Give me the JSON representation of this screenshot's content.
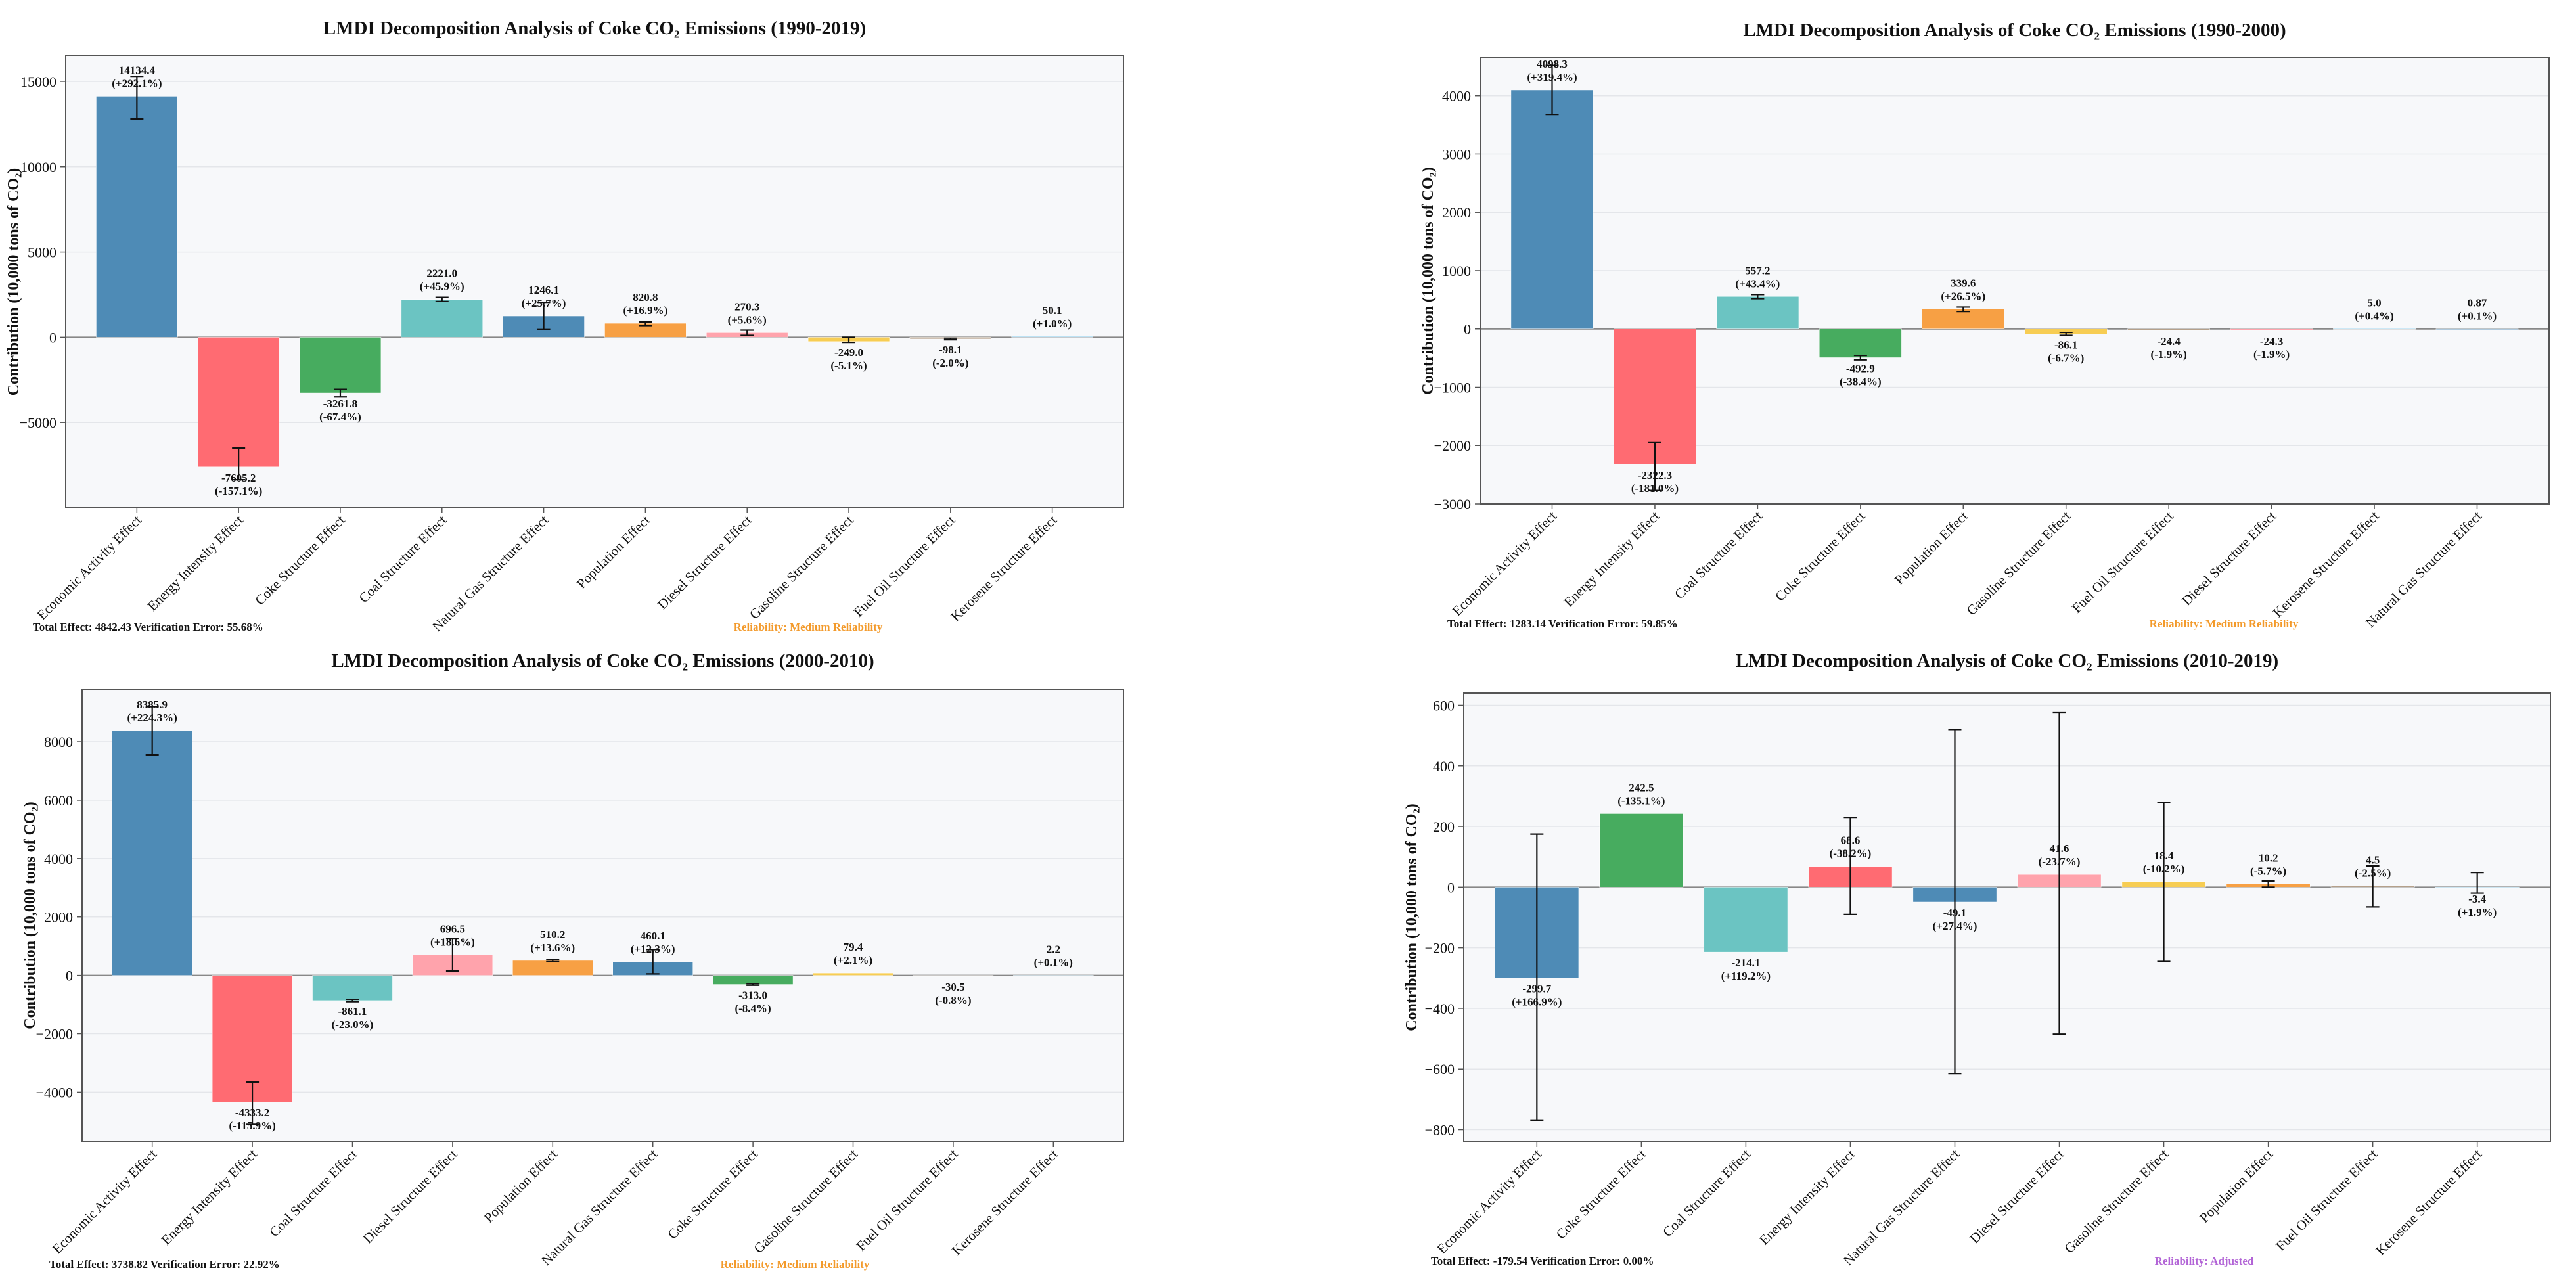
{
  "colors": {
    "plot_bg": "#f7f8fa",
    "grid": "#e4e6ea",
    "axis": "#555555",
    "zero": "#888888",
    "text": "#111111",
    "reliability_medium": "#f39a2b",
    "reliability_adjusted": "#b264d6"
  },
  "chart_data": [
    {
      "type": "bar",
      "title": "LMDI Decomposition Analysis of Coke CO₂ Emissions (1990-2019)",
      "ylabel": "Contribution (10,000 tons of CO₂)",
      "xlabel": "",
      "ylim": [
        -10000,
        16500
      ],
      "yticks": [
        -5000,
        0,
        5000,
        10000,
        15000
      ],
      "categories": [
        "Economic Activity Effect",
        "Energy Intensity Effect",
        "Coke Structure Effect",
        "Coal Structure Effect",
        "Natural Gas Structure Effect",
        "Population Effect",
        "Diesel Structure Effect",
        "Gasoline Structure Effect",
        "Fuel Oil Structure Effect",
        "Kerosene Structure Effect"
      ],
      "values": [
        14134.4,
        -7605.2,
        -3261.8,
        2221.0,
        1246.1,
        820.8,
        270.3,
        -249.0,
        -98.1,
        50.1
      ],
      "error_low": [
        12800,
        -8350,
        -3500,
        2100,
        450,
        690,
        110,
        -300,
        -145,
        35
      ],
      "error_high": [
        15300,
        -6500,
        -3050,
        2340,
        2050,
        900,
        420,
        0,
        -55,
        70
      ],
      "value_labels": [
        "14134.4",
        "-7605.2",
        "-3261.8",
        "2221.0",
        "1246.1",
        "820.8",
        "270.3",
        "-249.0",
        "-98.1",
        "50.1"
      ],
      "pct_labels": [
        "(+292.1%)",
        "(-157.1%)",
        "(-67.4%)",
        "(+45.9%)",
        "(+25.7%)",
        "(+16.9%)",
        "(+5.6%)",
        "(-5.1%)",
        "(-2.0%)",
        "(+1.0%)"
      ],
      "bar_colors": [
        "#4e8bb6",
        "#ff6b72",
        "#47ac5f",
        "#6bc4c2",
        "#4e8bb6",
        "#f7a044",
        "#ffa3ac",
        "#f7cd53",
        "#b5a08a",
        "#9ad4f0"
      ],
      "footer_left": "Total Effect: 4842.43   Verification Error: 55.68%",
      "footer_reliability": "Reliability: Medium Reliability",
      "reliability_color": "#f39a2b"
    },
    {
      "type": "bar",
      "title": "LMDI Decomposition Analysis of Coke CO₂ Emissions (1990-2000)",
      "ylabel": "Contribution (10,000 tons of CO₂)",
      "xlabel": "",
      "ylim": [
        -3000,
        4650
      ],
      "yticks": [
        -3000,
        -2000,
        -1000,
        0,
        1000,
        2000,
        3000,
        4000
      ],
      "categories": [
        "Economic Activity Effect",
        "Energy Intensity Effect",
        "Coal Structure Effect",
        "Coke Structure Effect",
        "Population Effect",
        "Gasoline Structure Effect",
        "Fuel Oil Structure Effect",
        "Diesel Structure Effect",
        "Kerosene Structure Effect",
        "Natural Gas Structure Effect"
      ],
      "values": [
        4098.3,
        -2322.3,
        557.2,
        -492.9,
        339.6,
        -86.1,
        -24.4,
        -24.3,
        5.0,
        0.87
      ],
      "error_low": [
        3680,
        -2770,
        520,
        -530,
        300,
        -110,
        -35,
        -35,
        3,
        0.5
      ],
      "error_high": [
        4520,
        -1950,
        590,
        -455,
        375,
        -60,
        -14,
        -14,
        7,
        1.2
      ],
      "value_labels": [
        "4098.3",
        "-2322.3",
        "557.2",
        "-492.9",
        "339.6",
        "-86.1",
        "-24.4",
        "-24.3",
        "5.0",
        "0.87"
      ],
      "pct_labels": [
        "(+319.4%)",
        "(-181.0%)",
        "(+43.4%)",
        "(-38.4%)",
        "(+26.5%)",
        "(-6.7%)",
        "(-1.9%)",
        "(-1.9%)",
        "(+0.4%)",
        "(+0.1%)"
      ],
      "bar_colors": [
        "#4e8bb6",
        "#ff6b72",
        "#6bc4c2",
        "#47ac5f",
        "#f7a044",
        "#f7cd53",
        "#b5a08a",
        "#ffa3ac",
        "#9ad4f0",
        "#4e8bb6"
      ],
      "footer_left": "Total Effect: 1283.14   Verification Error: 59.85%",
      "footer_reliability": "Reliability: Medium Reliability",
      "reliability_color": "#f39a2b"
    },
    {
      "type": "bar",
      "title": "LMDI Decomposition Analysis of Coke CO₂ Emissions (2000-2010)",
      "ylabel": "Contribution (10,000 tons of CO₂)",
      "xlabel": "",
      "ylim": [
        -5700,
        9800
      ],
      "yticks": [
        -4000,
        -2000,
        0,
        2000,
        4000,
        6000,
        8000
      ],
      "categories": [
        "Economic Activity Effect",
        "Energy Intensity Effect",
        "Coal Structure Effect",
        "Diesel Structure Effect",
        "Population Effect",
        "Natural Gas Structure Effect",
        "Coke Structure Effect",
        "Gasoline Structure Effect",
        "Fuel Oil Structure Effect",
        "Kerosene Structure Effect"
      ],
      "values": [
        8385.9,
        -4333.2,
        -861.1,
        696.5,
        510.2,
        460.1,
        -313.0,
        79.4,
        -30.5,
        2.2
      ],
      "error_low": [
        7550,
        -5100,
        -900,
        150,
        470,
        50,
        -340,
        60,
        -45,
        1.5
      ],
      "error_high": [
        9200,
        -3650,
        -820,
        1250,
        550,
        880,
        -285,
        100,
        -15,
        3
      ],
      "value_labels": [
        "8385.9",
        "-4333.2",
        "-861.1",
        "696.5",
        "510.2",
        "460.1",
        "-313.0",
        "79.4",
        "-30.5",
        "2.2"
      ],
      "pct_labels": [
        "(+224.3%)",
        "(-115.9%)",
        "(-23.0%)",
        "(+18.6%)",
        "(+13.6%)",
        "(+12.3%)",
        "(-8.4%)",
        "(+2.1%)",
        "(-0.8%)",
        "(+0.1%)"
      ],
      "bar_colors": [
        "#4e8bb6",
        "#ff6b72",
        "#6bc4c2",
        "#ffa3ac",
        "#f7a044",
        "#4e8bb6",
        "#47ac5f",
        "#f7cd53",
        "#b5a08a",
        "#9ad4f0"
      ],
      "footer_left": "Total Effect: 3738.82   Verification Error: 22.92%",
      "footer_reliability": "Reliability: Medium Reliability",
      "reliability_color": "#f39a2b"
    },
    {
      "type": "bar",
      "title": "LMDI Decomposition Analysis of Coke CO₂ Emissions (2010-2019)",
      "ylabel": "Contribution (10,000 tons of CO₂)",
      "xlabel": "",
      "ylim": [
        -840,
        640
      ],
      "yticks": [
        -800,
        -600,
        -400,
        -200,
        0,
        200,
        400,
        600
      ],
      "categories": [
        "Economic Activity Effect",
        "Coke Structure Effect",
        "Coal Structure Effect",
        "Energy Intensity Effect",
        "Natural Gas Structure Effect",
        "Diesel Structure Effect",
        "Gasoline Structure Effect",
        "Population Effect",
        "Fuel Oil Structure Effect",
        "Kerosene Structure Effect"
      ],
      "values": [
        -299.7,
        242.5,
        -214.1,
        68.6,
        -49.1,
        41.6,
        18.4,
        10.2,
        4.5,
        -3.4
      ],
      "error_low": [
        -770,
        242.5,
        -214.1,
        -90,
        -615,
        -485,
        -245,
        0,
        -65,
        -20
      ],
      "error_high": [
        175,
        242.5,
        -214.1,
        230,
        520,
        575,
        280,
        20,
        70,
        48
      ],
      "value_labels": [
        "-299.7",
        "242.5",
        "-214.1",
        "68.6",
        "-49.1",
        "41.6",
        "18.4",
        "10.2",
        "4.5",
        "-3.4"
      ],
      "pct_labels": [
        "(+166.9%)",
        "(-135.1%)",
        "(+119.2%)",
        "(-38.2%)",
        "(+27.4%)",
        "(-23.7%)",
        "(-10.2%)",
        "(-5.7%)",
        "(-2.5%)",
        "(+1.9%)"
      ],
      "bar_colors": [
        "#4e8bb6",
        "#47ac5f",
        "#6bc4c2",
        "#ff6b72",
        "#4e8bb6",
        "#ffa3ac",
        "#f7cd53",
        "#f7a044",
        "#b5a08a",
        "#9ad4f0"
      ],
      "footer_left": "Total Effect: -179.54   Verification Error: 0.00%",
      "footer_reliability": "Reliability: Adjusted",
      "reliability_color": "#b264d6"
    }
  ]
}
